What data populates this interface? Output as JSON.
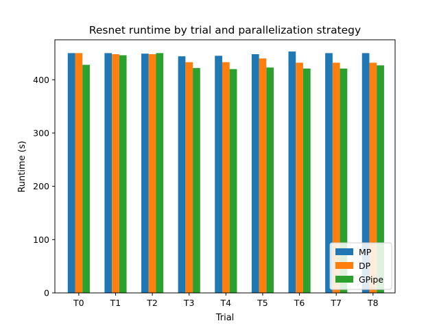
{
  "chart_data": {
    "type": "bar",
    "title": "Resnet runtime by trial and parallelization strategy",
    "xlabel": "Trial",
    "ylabel": "Runtime (s)",
    "categories": [
      "T0",
      "T1",
      "T2",
      "T3",
      "T4",
      "T5",
      "T6",
      "T7",
      "T8"
    ],
    "series": [
      {
        "name": "MP",
        "color": "#1f77b4",
        "values": [
          450,
          450,
          449,
          444,
          445,
          448,
          453,
          450,
          450
        ]
      },
      {
        "name": "DP",
        "color": "#ff7f0e",
        "values": [
          450,
          448,
          448,
          433,
          433,
          440,
          432,
          432,
          432
        ]
      },
      {
        "name": "GPipe",
        "color": "#2ca02c",
        "values": [
          428,
          446,
          450,
          422,
          420,
          423,
          421,
          421,
          427
        ]
      }
    ],
    "ylim": [
      0,
      475
    ],
    "yticks": [
      0,
      100,
      200,
      300,
      400
    ],
    "grid": false,
    "legend_position": "lower-right"
  }
}
